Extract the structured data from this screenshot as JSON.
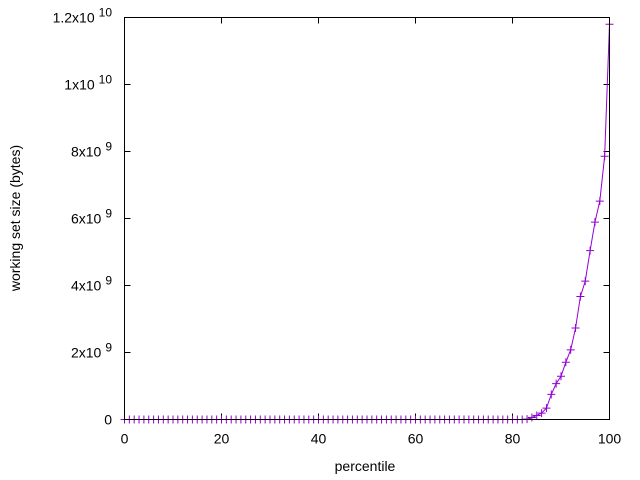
{
  "chart_data": {
    "type": "line",
    "title": "",
    "xlabel": "percentile",
    "ylabel": "working set size (bytes)",
    "xlim": [
      0,
      100
    ],
    "ylim": [
      0,
      12000000000
    ],
    "grid": false,
    "legend": "none",
    "series_color": "#9400d3",
    "marker": "plus",
    "x_ticks": [
      {
        "value": 0,
        "label": "0"
      },
      {
        "value": 20,
        "label": "20"
      },
      {
        "value": 40,
        "label": "40"
      },
      {
        "value": 60,
        "label": "60"
      },
      {
        "value": 80,
        "label": "80"
      },
      {
        "value": 100,
        "label": "100"
      }
    ],
    "y_ticks": [
      {
        "value": 0,
        "base": "0",
        "exp": ""
      },
      {
        "value": 2000000000,
        "base": "2x10",
        "exp": "9"
      },
      {
        "value": 4000000000,
        "base": "4x10",
        "exp": "9"
      },
      {
        "value": 6000000000,
        "base": "6x10",
        "exp": "9"
      },
      {
        "value": 8000000000,
        "base": "8x10",
        "exp": "9"
      },
      {
        "value": 10000000000,
        "base": "1x10",
        "exp": "10"
      },
      {
        "value": 12000000000,
        "base": "1.2x10",
        "exp": "10"
      }
    ],
    "x": [
      0,
      1,
      2,
      3,
      4,
      5,
      6,
      7,
      8,
      9,
      10,
      11,
      12,
      13,
      14,
      15,
      16,
      17,
      18,
      19,
      20,
      21,
      22,
      23,
      24,
      25,
      26,
      27,
      28,
      29,
      30,
      31,
      32,
      33,
      34,
      35,
      36,
      37,
      38,
      39,
      40,
      41,
      42,
      43,
      44,
      45,
      46,
      47,
      48,
      49,
      50,
      51,
      52,
      53,
      54,
      55,
      56,
      57,
      58,
      59,
      60,
      61,
      62,
      63,
      64,
      65,
      66,
      67,
      68,
      69,
      70,
      71,
      72,
      73,
      74,
      75,
      76,
      77,
      78,
      79,
      80,
      81,
      82,
      83,
      84,
      85,
      86,
      87,
      88,
      89,
      90,
      91,
      92,
      93,
      94,
      95,
      96,
      97,
      98,
      99,
      100
    ],
    "y": [
      0,
      0,
      0,
      0,
      0,
      0,
      0,
      0,
      0,
      0,
      0,
      0,
      0,
      0,
      0,
      0,
      0,
      0,
      0,
      0,
      0,
      0,
      0,
      0,
      0,
      0,
      0,
      0,
      0,
      0,
      0,
      0,
      0,
      0,
      0,
      0,
      0,
      0,
      0,
      0,
      0,
      0,
      0,
      0,
      0,
      0,
      0,
      0,
      0,
      0,
      0,
      0,
      0,
      0,
      0,
      0,
      0,
      0,
      0,
      0,
      0,
      0,
      0,
      0,
      0,
      0,
      0,
      0,
      0,
      0,
      0,
      0,
      0,
      0,
      0,
      0,
      0,
      0,
      0,
      0,
      0,
      0,
      0,
      10000000,
      60000000,
      120000000,
      190000000,
      340000000,
      750000000,
      1070000000,
      1290000000,
      1710000000,
      2080000000,
      2730000000,
      3670000000,
      4130000000,
      5040000000,
      5890000000,
      6520000000,
      7860000000,
      11800000000
    ]
  }
}
